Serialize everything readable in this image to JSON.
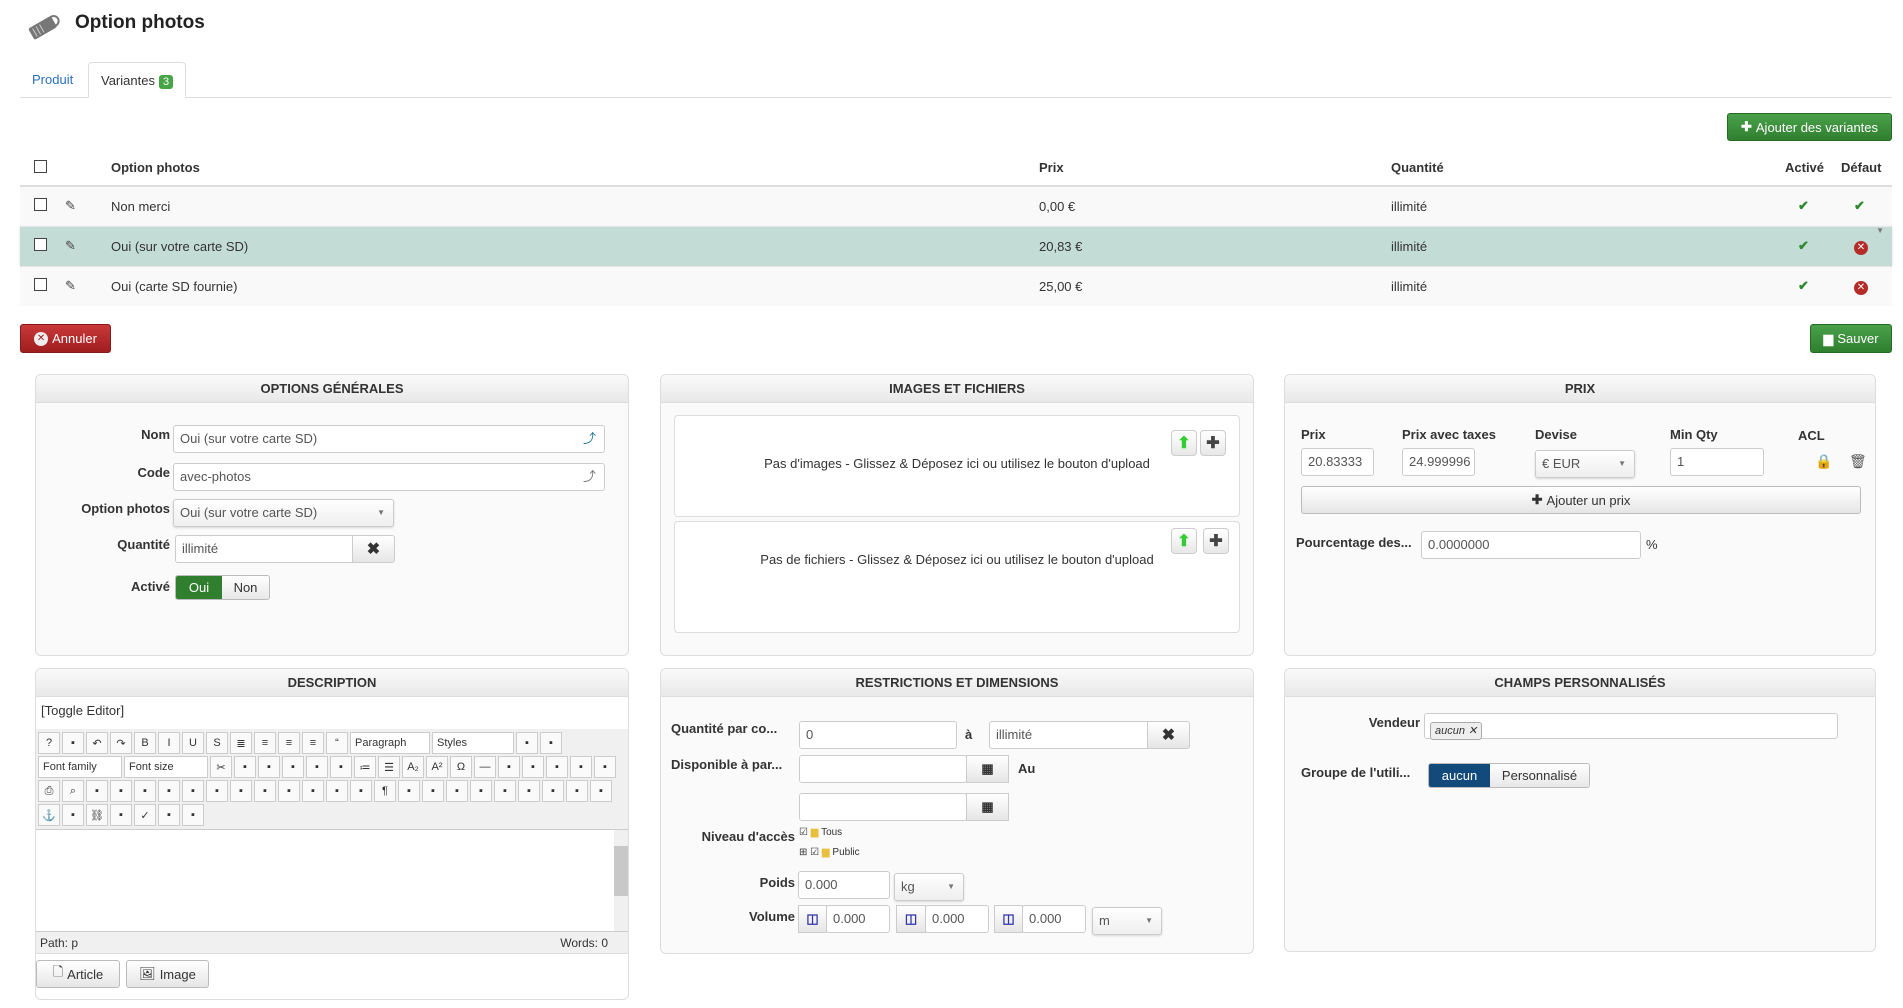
{
  "header": {
    "title": "Option photos",
    "icon": "price-tag-icon"
  },
  "tabs": [
    {
      "label": "Produit"
    },
    {
      "label": "Variantes",
      "badge": "3"
    }
  ],
  "actions": {
    "add_variants": "Ajouter des variantes",
    "cancel": "Annuler",
    "save": "Sauver"
  },
  "table": {
    "headers": {
      "name": "Option photos",
      "price": "Prix",
      "quantity": "Quantité",
      "active": "Activé",
      "default": "Défaut"
    },
    "rows": [
      {
        "name": "Non merci",
        "price": "0,00 €",
        "quantity": "illimité",
        "active": true,
        "default": true
      },
      {
        "name": "Oui (sur votre carte SD)",
        "price": "20,83 €",
        "quantity": "illimité",
        "active": true,
        "default": false,
        "selected": true
      },
      {
        "name": "Oui (carte SD fournie)",
        "price": "25,00 €",
        "quantity": "illimité",
        "active": true,
        "default": false
      }
    ]
  },
  "general": {
    "title": "OPTIONS GÉNÉRALES",
    "name_label": "Nom",
    "name_value": "Oui (sur votre carte SD)",
    "code_label": "Code",
    "code_value": "avec-photos",
    "option_label": "Option photos",
    "option_value": "Oui (sur votre carte SD)",
    "qty_label": "Quantité",
    "qty_value": "illimité",
    "active_label": "Activé",
    "yes": "Oui",
    "no": "Non",
    "active_value": "Oui"
  },
  "images": {
    "title": "IMAGES ET FICHIERS",
    "no_images": "Pas d'images - Glissez & Déposez ici ou utilisez le bouton d'upload",
    "no_files": "Pas de fichiers - Glissez & Déposez ici ou utilisez le bouton d'upload"
  },
  "price": {
    "title": "PRIX",
    "h_price": "Prix",
    "h_price_tax": "Prix avec taxes",
    "h_currency": "Devise",
    "h_min_qty": "Min Qty",
    "h_acl": "ACL",
    "price": "20.83333",
    "price_tax": "24.999996",
    "currency": "€ EUR",
    "min_qty": "1",
    "add_price": "Ajouter un prix",
    "percent_label": "Pourcentage des...",
    "percent_value": "0.0000000",
    "percent_unit": "%"
  },
  "description": {
    "title": "DESCRIPTION",
    "toggle": "[Toggle Editor]",
    "paragraph": "Paragraph",
    "styles": "Styles",
    "font_family": "Font family",
    "font_size": "Font size",
    "path": "Path: p",
    "words": "Words: 0",
    "article": "Article",
    "image": "Image",
    "toolbar_icons": [
      "help",
      "new-document",
      "undo",
      "redo",
      "bold",
      "italic",
      "underline",
      "strikethrough",
      "justify",
      "align-center",
      "align-left",
      "align-right",
      "blockquote",
      "cleanup",
      "paint-brush",
      "cut",
      "copy",
      "paste",
      "paste-text",
      "indent",
      "outdent",
      "ordered-list",
      "unordered-list",
      "subscript",
      "superscript",
      "special-char",
      "horizontal-rule",
      "ltr",
      "rtl",
      "fullscreen",
      "template",
      "code",
      "print",
      "search",
      "replace",
      "table",
      "delete-table",
      "row-before",
      "row-after",
      "col-before",
      "col-after",
      "merge",
      "split",
      "cell-props",
      "table-props",
      "visual-aid",
      "paragraph-mark",
      "paste-word",
      "pagebreak",
      "style",
      "cite",
      "abbr",
      "acronym",
      "del",
      "ins",
      "attributes",
      "anchor",
      "unlink",
      "link",
      "image",
      "spellcheck",
      "layer",
      "box"
    ]
  },
  "restrictions": {
    "title": "RESTRICTIONS ET DIMENSIONS",
    "qty_label": "Quantité par co...",
    "qty_min": "0",
    "to": "à",
    "qty_max": "illimité",
    "avail_label": "Disponible à par...",
    "au": "Au",
    "access_label": "Niveau d'accès",
    "access": [
      {
        "label": "Tous",
        "checked": true
      },
      {
        "label": "Public",
        "checked": true
      }
    ],
    "weight_label": "Poids",
    "weight": "0.000",
    "weight_unit": "kg",
    "volume_label": "Volume",
    "vol_x": "0.000",
    "vol_y": "0.000",
    "vol_z": "0.000",
    "vol_unit": "m"
  },
  "custom": {
    "title": "CHAMPS PERSONNALISÉS",
    "vendor_label": "Vendeur",
    "vendor_tag": "aucun",
    "group_label": "Groupe de l'utili...",
    "group_opt1": "aucun",
    "group_opt2": "Personnalisé"
  },
  "colors": {
    "green": "#2f7f2f",
    "red": "#b52b27",
    "selected_row": "#c3dcd6",
    "blue": "#134a7c"
  }
}
